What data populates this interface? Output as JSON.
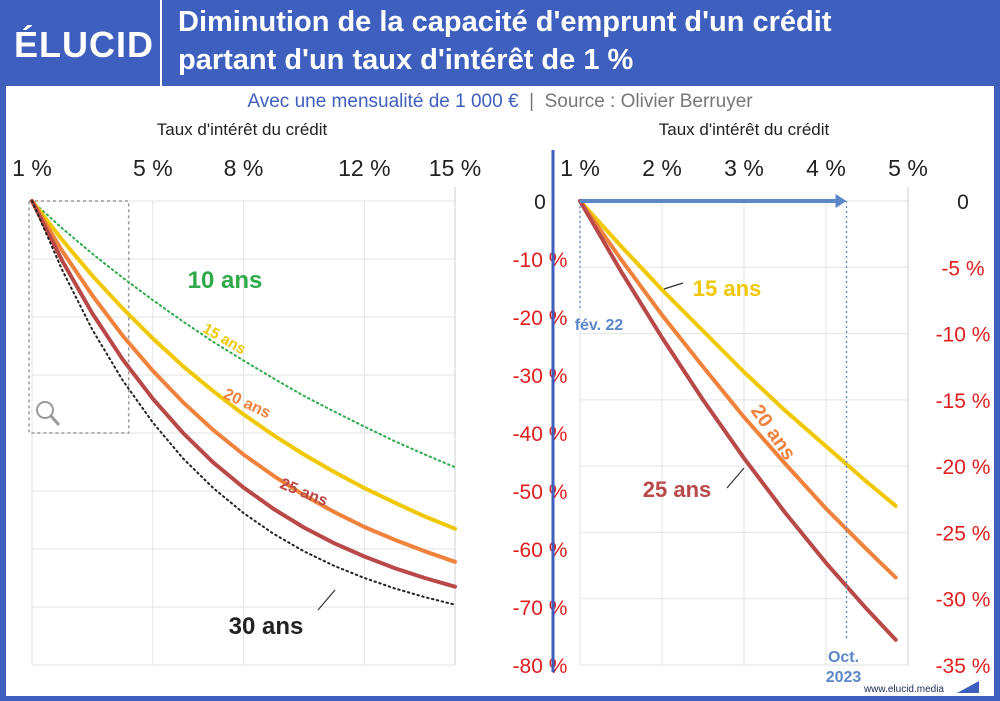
{
  "brand": {
    "logo": "ÉLUCID",
    "website": "www.elucid.media",
    "accent": "#3f5fbe"
  },
  "header": {
    "title_line1": "Diminution de la capacité d'emprunt d'un crédit",
    "title_line2": "partant d'un taux d'intérêt de 1 %"
  },
  "subtitle": {
    "left": "Avec une mensualité de 1 000 €",
    "separator": "|",
    "right": "Source : Olivier Berruyer"
  },
  "chart_data": [
    {
      "type": "line",
      "xlabel": "Taux d'intérêt du crédit",
      "xlim": [
        1,
        15
      ],
      "xticks": [
        1,
        5,
        8,
        12,
        15
      ],
      "xtick_labels": [
        "1 %",
        "5 %",
        "8 %",
        "12 %",
        "15 %"
      ],
      "ylim": [
        -80,
        0
      ],
      "yticks": [
        0,
        -10,
        -20,
        -30,
        -40,
        -50,
        -60,
        -70,
        -80
      ],
      "ytick_labels": [
        "0",
        "-10 %",
        "-20 %",
        "-30 %",
        "-40 %",
        "-50 %",
        "-60 %",
        "-70 %",
        "-80 %"
      ],
      "grid": true,
      "zoom_box": {
        "x": [
          1,
          4.2
        ],
        "y": [
          -40,
          0
        ]
      },
      "series": [
        {
          "name": "10 ans",
          "color": "#2eaa4a",
          "style": "dotted",
          "x": [
            1,
            2,
            3,
            4,
            5,
            6,
            7,
            8,
            9,
            10,
            11,
            12,
            13,
            14,
            15
          ],
          "y": [
            0,
            -4.7,
            -9.1,
            -13.2,
            -17.1,
            -20.8,
            -24.3,
            -27.5,
            -30.6,
            -33.6,
            -36.3,
            -38.9,
            -41.4,
            -43.7,
            -45.9
          ]
        },
        {
          "name": "15 ans",
          "color": "#f0c800",
          "style": "solid",
          "x": [
            1,
            2,
            3,
            4,
            5,
            6,
            7,
            8,
            9,
            10,
            11,
            12,
            13,
            14,
            15
          ],
          "y": [
            0,
            -6.7,
            -12.9,
            -18.5,
            -23.7,
            -28.5,
            -32.8,
            -36.8,
            -40.4,
            -43.7,
            -46.7,
            -49.5,
            -52.0,
            -54.4,
            -56.5
          ]
        },
        {
          "name": "20 ans",
          "color": "#f0823c",
          "style": "solid",
          "x": [
            1,
            2,
            3,
            4,
            5,
            6,
            7,
            8,
            9,
            10,
            11,
            12,
            13,
            14,
            15
          ],
          "y": [
            0,
            -8.6,
            -16.3,
            -23.2,
            -29.3,
            -34.7,
            -39.5,
            -43.7,
            -47.4,
            -50.7,
            -53.6,
            -56.2,
            -58.4,
            -60.4,
            -62.2
          ]
        },
        {
          "name": "25 ans",
          "color": "#b94848",
          "style": "solid",
          "x": [
            1,
            2,
            3,
            4,
            5,
            6,
            7,
            8,
            9,
            10,
            11,
            12,
            13,
            14,
            15
          ],
          "y": [
            0,
            -10.3,
            -19.4,
            -27.3,
            -34.1,
            -40.0,
            -45.1,
            -49.4,
            -53.1,
            -56.3,
            -59.0,
            -61.3,
            -63.3,
            -65.0,
            -66.5
          ]
        },
        {
          "name": "30 ans",
          "color": "#222222",
          "style": "dotted",
          "x": [
            1,
            2,
            3,
            4,
            5,
            6,
            7,
            8,
            9,
            10,
            11,
            12,
            13,
            14,
            15
          ],
          "y": [
            0,
            -11.9,
            -22.2,
            -30.9,
            -38.2,
            -44.4,
            -49.5,
            -53.8,
            -57.4,
            -60.4,
            -62.9,
            -65.0,
            -66.8,
            -68.3,
            -69.6
          ]
        }
      ]
    },
    {
      "type": "line",
      "xlabel": "Taux d'intérêt du crédit",
      "xlim": [
        1,
        5
      ],
      "xticks": [
        1,
        2,
        3,
        4,
        5
      ],
      "xtick_labels": [
        "1 %",
        "2 %",
        "3 %",
        "4 %",
        "5 %"
      ],
      "ylim": [
        -35,
        0
      ],
      "yticks": [
        0,
        -5,
        -10,
        -15,
        -20,
        -25,
        -30,
        -35
      ],
      "ytick_labels": [
        "0",
        "-5 %",
        "-10 %",
        "-15 %",
        "-20 %",
        "-25 %",
        "-30 %",
        "-35 %"
      ],
      "grid": true,
      "series": [
        {
          "name": "15 ans",
          "color": "#f0c800",
          "x": [
            1,
            1.5,
            2,
            2.5,
            3,
            3.5,
            4,
            4.5,
            4.85
          ],
          "y": [
            0,
            -3.4,
            -6.7,
            -9.8,
            -12.9,
            -15.8,
            -18.5,
            -21.2,
            -23.0
          ]
        },
        {
          "name": "20 ans",
          "color": "#f0823c",
          "x": [
            1,
            1.5,
            2,
            2.5,
            3,
            3.5,
            4,
            4.5,
            4.85
          ],
          "y": [
            0,
            -4.4,
            -8.6,
            -12.5,
            -16.3,
            -19.8,
            -23.2,
            -26.3,
            -28.4
          ]
        },
        {
          "name": "25 ans",
          "color": "#b94848",
          "x": [
            1,
            1.5,
            2,
            2.5,
            3,
            3.5,
            4,
            4.5,
            4.85
          ],
          "y": [
            0,
            -5.3,
            -10.3,
            -15.0,
            -19.4,
            -23.5,
            -27.3,
            -30.8,
            -33.1
          ]
        }
      ],
      "annotations": [
        {
          "text": "fév. 22",
          "x": 1.0
        },
        {
          "text_line1": "Oct.",
          "text_line2": "2023",
          "x": 4.25
        }
      ],
      "arrow": {
        "from": 1,
        "to": 4.25,
        "color": "#5b86c8"
      }
    }
  ]
}
